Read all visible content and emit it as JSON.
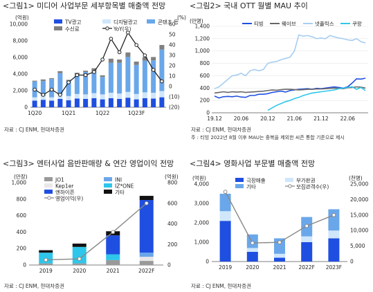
{
  "chart_data": [
    {
      "type": "bar",
      "title": "<그림1> 미디어 사업부문 세부항목별 매출액 전망",
      "unit_left": "(억원)",
      "unit_right": "(%)",
      "ylim": [
        0,
        10000
      ],
      "y2lim": [
        -20,
        60
      ],
      "yticks": [
        "0",
        "2,000",
        "4,000",
        "6,000",
        "8,000",
        "10,000"
      ],
      "y2ticks": [
        "(20)",
        "(10)",
        "0",
        "10",
        "20",
        "30",
        "40",
        "50",
        "60"
      ],
      "x_tick_labels": {
        "0": "1Q20",
        "4": "1Q21",
        "8": "1Q22",
        "12": "1Q23F"
      },
      "categories": [
        "1Q20",
        "2Q20",
        "3Q20",
        "4Q20",
        "1Q21",
        "2Q21",
        "3Q21",
        "4Q21",
        "1Q22",
        "2Q22",
        "3Q22",
        "4Q22",
        "1Q23F",
        "2Q23F",
        "3Q23F",
        "4Q23F"
      ],
      "series": [
        {
          "name": "TV광고",
          "color": "#1f4fe0",
          "values": [
            800,
            900,
            800,
            1000,
            850,
            1050,
            1000,
            1100,
            950,
            1100,
            1000,
            1150,
            950,
            1100,
            1050,
            1200
          ]
        },
        {
          "name": "디지털광고",
          "color": "#cfe6fb",
          "values": [
            400,
            450,
            400,
            500,
            500,
            550,
            550,
            600,
            600,
            650,
            650,
            700,
            650,
            700,
            700,
            750
          ]
        },
        {
          "name": "콘텐츠 등",
          "color": "#6aa7ea",
          "values": [
            1900,
            1800,
            2200,
            2600,
            1800,
            2300,
            2700,
            2600,
            2100,
            3600,
            3700,
            4200,
            3500,
            3800,
            3900,
            5000
          ]
        },
        {
          "name": "수신료",
          "color": "#808080",
          "values": [
            100,
            200,
            100,
            250,
            150,
            250,
            150,
            400,
            200,
            500,
            400,
            550,
            400,
            450,
            400,
            550
          ]
        },
        {
          "name": "YoY(우)",
          "type": "line",
          "color": "#222222",
          "values": [
            -3,
            -8,
            -3,
            -8,
            4,
            11,
            11,
            14,
            26,
            46,
            33,
            52,
            40,
            30,
            16,
            5
          ]
        }
      ]
    },
    {
      "type": "line",
      "title": "<그림2> 국내 OTT 월별 MAU 추이",
      "unit_left": "(만명)",
      "ylim": [
        0,
        1400
      ],
      "yticks": [
        "0",
        "200",
        "400",
        "600",
        "800",
        "1,000",
        "1,200",
        "1,400"
      ],
      "x_tick_labels": [
        "19.12",
        "20.06",
        "20.12",
        "21.06",
        "21.12",
        "22.06"
      ],
      "series": [
        {
          "name": "티빙",
          "color": "#1f4fe0",
          "values": [
            270,
            240,
            260,
            265,
            260,
            270,
            255,
            250,
            280,
            280,
            300,
            300,
            310,
            330,
            340,
            350,
            335,
            360,
            370,
            380,
            385,
            390,
            380,
            395,
            390,
            400,
            410,
            420,
            410,
            400,
            420,
            480,
            550,
            545,
            560
          ]
        },
        {
          "name": "웨이브",
          "color": "#666666",
          "values": [
            320,
            330,
            340,
            330,
            340,
            335,
            340,
            330,
            335,
            340,
            345,
            350,
            360,
            370,
            365,
            375,
            380,
            380,
            375,
            370,
            375,
            380,
            380,
            385,
            385,
            390,
            395,
            400,
            395,
            390,
            405,
            410,
            420,
            415,
            400
          ]
        },
        {
          "name": "넷플릭스",
          "color": "#a6cdf1",
          "values": [
            390,
            420,
            480,
            540,
            600,
            610,
            640,
            600,
            680,
            700,
            680,
            700,
            800,
            820,
            830,
            860,
            880,
            900,
            1000,
            1260,
            1240,
            1250,
            1230,
            1200,
            1210,
            1200,
            1250,
            1230,
            1210,
            1200,
            1180,
            1170,
            1200,
            1150,
            1130
          ]
        },
        {
          "name": "쿠팡",
          "color": "#2ec6ea",
          "values": [
            null,
            null,
            null,
            null,
            null,
            null,
            null,
            null,
            null,
            null,
            null,
            null,
            40,
            80,
            120,
            150,
            180,
            200,
            230,
            250,
            280,
            300,
            320,
            330,
            340,
            350,
            360,
            370,
            390,
            400,
            410,
            420,
            380,
            410,
            360
          ]
        }
      ]
    },
    {
      "type": "bar",
      "title": "<그림3> 엔터사업 음반판매량 & 연간 영업이익 전망",
      "unit_left": "(만장)",
      "unit_right": "(억원)",
      "ylim": [
        0,
        1000
      ],
      "y2lim": [
        0,
        800
      ],
      "yticks": [
        "0",
        "200",
        "400",
        "600",
        "800",
        "1,000"
      ],
      "y2ticks": [
        "0",
        "200",
        "400",
        "600",
        "800"
      ],
      "categories": [
        "2019",
        "2020",
        "2021",
        "2022F"
      ],
      "series": [
        {
          "name": "JO1",
          "color": "#999999",
          "values": [
            20,
            20,
            60,
            50
          ]
        },
        {
          "name": "INI",
          "color": "#6aa7ea",
          "values": [
            0,
            0,
            0,
            50
          ]
        },
        {
          "name": "기타",
          "color": "#111111",
          "values": [
            30,
            40,
            50,
            50
          ]
        },
        {
          "name": "Kep1er",
          "color": "#e8e8e8",
          "values": [
            0,
            0,
            0,
            50
          ]
        },
        {
          "name": "IZ*ONE",
          "color": "#2ec6ea",
          "values": [
            130,
            200,
            70,
            0
          ]
        },
        {
          "name": "엔하이픈",
          "color": "#1f4fe0",
          "values": [
            0,
            0,
            230,
            640
          ]
        },
        {
          "name": "영업이익(우)",
          "type": "line",
          "color": "#888888",
          "values": [
            50,
            60,
            320,
            600
          ]
        }
      ]
    },
    {
      "type": "bar",
      "title": "<그림4> 영화사업 부문별 매출액 전망",
      "unit_left": "(억원)",
      "unit_right": "(천명)",
      "ylim": [
        0,
        4000
      ],
      "y2lim": [
        0,
        25000
      ],
      "yticks": [
        "0",
        "1,000",
        "2,000",
        "3,000",
        "4,000"
      ],
      "y2ticks": [
        "0",
        "5,000",
        "10,000",
        "15,000",
        "20,000",
        "25,000"
      ],
      "categories": [
        "2019",
        "2020",
        "2021",
        "2022F",
        "2023F"
      ],
      "series": [
        {
          "name": "극장매출",
          "color": "#1f4fe0",
          "values": [
            2100,
            500,
            200,
            1000,
            1200
          ]
        },
        {
          "name": "부가판권",
          "color": "#cfe6fb",
          "values": [
            500,
            200,
            200,
            300,
            400
          ]
        },
        {
          "name": "기타",
          "color": "#6aa7ea",
          "values": [
            900,
            700,
            800,
            1000,
            1100
          ]
        },
        {
          "name": "모집관객수(우)",
          "type": "line",
          "color": "#888888",
          "values": [
            22500,
            6000,
            6200,
            11500,
            15000
          ]
        }
      ]
    }
  ],
  "sources": {
    "p1": "자료 : CJ ENM, 현대차증권",
    "p2": "자료 : CJ ENM, 현대차증권",
    "p2_note": "주 : 티빙 2022년 8월 이후 MAU는 중복을 제외한 씨즌 통합 기준으로 제시",
    "p3": "자료 : CJ ENM, 현대차증권",
    "p4": "자료 : CJ ENM, 현대차증권"
  }
}
